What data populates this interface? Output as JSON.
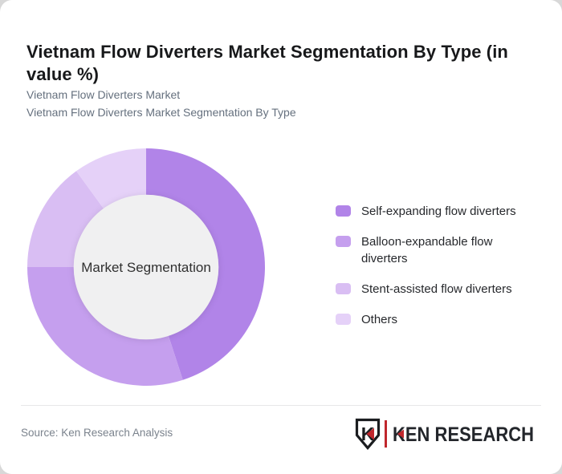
{
  "header": {
    "title": "Vietnam Flow Diverters Market Segmentation By Type (in value %)",
    "subtitle_line1": "Vietnam Flow Diverters Market",
    "subtitle_line2": "Vietnam Flow Diverters Market Segmentation By Type"
  },
  "chart_data": {
    "type": "pie",
    "subtype": "donut",
    "title": "Vietnam Flow Diverters Market Segmentation By Type (in value %)",
    "center_label": "Market Segmentation",
    "categories": [
      "Self-expanding flow diverters",
      "Balloon-expandable flow diverters",
      "Stent-assisted flow diverters",
      "Others"
    ],
    "values": [
      45,
      30,
      15,
      10
    ],
    "unit": "value %",
    "colors": [
      "#b184e8",
      "#c59fee",
      "#d9bef3",
      "#e5d1f8"
    ],
    "center_fill": "#f0f0f1",
    "inner_radius_ratio": 0.61,
    "start_angle_deg": 0,
    "direction": "clockwise",
    "legend_position": "right",
    "legend_on": true
  },
  "footer": {
    "source": "Source: Ken Research Analysis",
    "logo_text": "KEN RESEARCH",
    "logo_icon_letter": "K",
    "logo_accent_color": "#c0272d",
    "logo_dark_color": "#1b1d20"
  }
}
